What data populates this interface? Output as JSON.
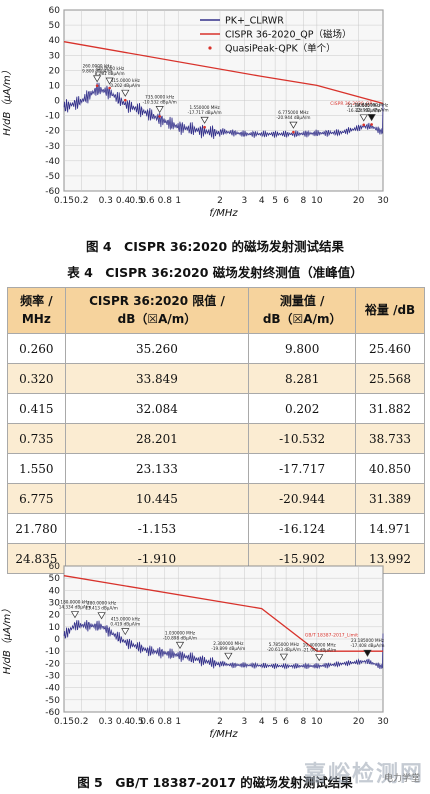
{
  "figure1": {
    "caption": "图 4　CISPR 36:2020 的磁场发射测试结果",
    "ylabel": "H/dB（μA/m）",
    "xlabel": "f/MHz",
    "y_ticks": [
      "60",
      "50",
      "40",
      "30",
      "20",
      "10",
      "0",
      "-10",
      "-20",
      "-30",
      "-40",
      "-50",
      "-60"
    ],
    "x_ticks": [
      "0.15",
      "0.2",
      "0.3",
      "0.4",
      "0.5",
      "0.6",
      "0.8",
      "1",
      "2",
      "3",
      "4",
      "5",
      "6",
      "8",
      "10",
      "20",
      "30"
    ],
    "legend": [
      {
        "label": "PK+_CLRWR",
        "color": "#33308a"
      },
      {
        "label": "CISPR 36-2020_QP（磁场）",
        "color": "#d8322b"
      },
      {
        "label": "QuasiPeak-QPK（单个）",
        "color": "#d8322b"
      }
    ],
    "limit_label": "CISPR 36-2020_QP",
    "marker_labels": [
      {
        "l1": "260.0000 kHz",
        "l2": "9.800 dBμA/m"
      },
      {
        "l1": "320.0000 kHz",
        "l2": "8.281 dBμA/m"
      },
      {
        "l1": "415.0000 kHz",
        "l2": "0.202 dBμA/m"
      },
      {
        "l1": "735.0000 kHz",
        "l2": "-10.532 dBμA/m"
      },
      {
        "l1": "1.550000 MHz",
        "l2": "-17.717 dBμA/m"
      },
      {
        "l1": "6.775000 MHz",
        "l2": "-20.944 dBμA/m"
      },
      {
        "l1": "21.780000 MHz",
        "l2": "-16.124 dBμA/m"
      },
      {
        "l1": "24.835000 MHz",
        "l2": "-15.902 dBμA/m"
      }
    ]
  },
  "table": {
    "title": "表 4　CISPR 36:2020 磁场发射终测值（准峰值）",
    "headers": [
      {
        "l1": "频率 /",
        "l2": "MHz"
      },
      {
        "l1": "CISPR 36:2020 限值 /",
        "l2": "dB（☒A/m）"
      },
      {
        "l1": "测量值 /",
        "l2": "dB（☒A/m）"
      },
      {
        "l1": "裕量 /dB",
        "l2": ""
      }
    ],
    "rows": [
      [
        "0.260",
        "35.260",
        "9.800",
        "25.460"
      ],
      [
        "0.320",
        "33.849",
        "8.281",
        "25.568"
      ],
      [
        "0.415",
        "32.084",
        "0.202",
        "31.882"
      ],
      [
        "0.735",
        "28.201",
        "-10.532",
        "38.733"
      ],
      [
        "1.550",
        "23.133",
        "-17.717",
        "40.850"
      ],
      [
        "6.775",
        "10.445",
        "-20.944",
        "31.389"
      ],
      [
        "21.780",
        "-1.153",
        "-16.124",
        "14.971"
      ],
      [
        "24.835",
        "-1.910",
        "-15.902",
        "13.992"
      ]
    ]
  },
  "figure2": {
    "caption": "图 5　GB/T 18387-2017 的磁场发射测试结果",
    "ylabel": "H/dB（μA/m）",
    "xlabel": "f/MHz",
    "y_ticks": [
      "60",
      "50",
      "40",
      "30",
      "20",
      "10",
      "0",
      "-10",
      "-20",
      "-30",
      "-40",
      "-50",
      "-60"
    ],
    "x_ticks": [
      "0.15",
      "0.2",
      "0.3",
      "0.4",
      "0.5",
      "0.6",
      "0.8",
      "1",
      "2",
      "3",
      "4",
      "5",
      "6",
      "8",
      "10",
      "20",
      "30"
    ],
    "limit_label": "GB/T 18387-2017_Limit",
    "marker_labels": [
      {
        "l1": "180.0000 kHz",
        "l2": "14.334 dBμA/m"
      },
      {
        "l1": "280.0000 kHz",
        "l2": "13.413 dBμA/m"
      },
      {
        "l1": "415.0000 kHz",
        "l2": "0.419 dBμA/m"
      },
      {
        "l1": "1.030000 MHz",
        "l2": "-10.898 dBμA/m"
      },
      {
        "l1": "2.300000 MHz",
        "l2": "-19.899 dBμA/m"
      },
      {
        "l1": "5.785000 MHz",
        "l2": "-20.613 dBμA/m"
      },
      {
        "l1": "10.400000 MHz",
        "l2": "-21.000 dBμA/m"
      },
      {
        "l1": "23.185000 MHz",
        "l2": "-17.408 dBμA/m"
      }
    ]
  },
  "watermark": "嘉峪检测网",
  "watermark_small": "电力学堂",
  "colors": {
    "trace": "#33308a",
    "limit": "#d8322b",
    "header": "#f6d39d",
    "stripe": "#fbecd2"
  },
  "chart_data": [
    {
      "type": "line",
      "title": "",
      "xlabel": "f/MHz",
      "ylabel": "H/dB（μA/m）",
      "x_scale": "log",
      "xlim": [
        0.15,
        30
      ],
      "ylim": [
        -60,
        60
      ],
      "grid": true,
      "legend_position": "top-right",
      "series": [
        {
          "name": "CISPR 36-2020_QP（磁场）",
          "x": [
            0.15,
            4,
            10,
            30
          ],
          "values": [
            39,
            16,
            10,
            -2
          ]
        },
        {
          "name": "PK+_CLRWR",
          "x": [
            0.15,
            0.2,
            0.26,
            0.32,
            0.415,
            0.6,
            0.735,
            1,
            1.55,
            3,
            6.775,
            15,
            21.78,
            24.835,
            30
          ],
          "values": [
            -2,
            2,
            10,
            8,
            0,
            -6,
            -10,
            -15,
            -18,
            -21,
            -21,
            -20,
            -16,
            -16,
            -20
          ]
        },
        {
          "name": "QuasiPeak-QPK（单个）",
          "x": [
            0.26,
            0.32,
            0.415,
            0.735,
            1.55,
            6.775,
            21.78,
            24.835
          ],
          "values": [
            9.8,
            8.281,
            0.202,
            -10.532,
            -17.717,
            -20.944,
            -16.124,
            -15.902
          ]
        }
      ]
    },
    {
      "type": "line",
      "title": "",
      "xlabel": "f/MHz",
      "ylabel": "H/dB（μA/m）",
      "x_scale": "log",
      "xlim": [
        0.15,
        30
      ],
      "ylim": [
        -60,
        60
      ],
      "grid": true,
      "series": [
        {
          "name": "GB/T 18387-2017_Limit",
          "x": [
            0.15,
            4,
            10,
            30
          ],
          "values": [
            52,
            25,
            -10,
            -10
          ]
        },
        {
          "name": "",
          "x": [
            0.15,
            0.18,
            0.28,
            0.415,
            0.6,
            1.03,
            2.3,
            5.785,
            10.4,
            23.185,
            30
          ],
          "values": [
            5,
            14,
            13,
            0,
            -7,
            -11,
            -20,
            -21,
            -21,
            -17,
            -22
          ]
        }
      ]
    }
  ]
}
